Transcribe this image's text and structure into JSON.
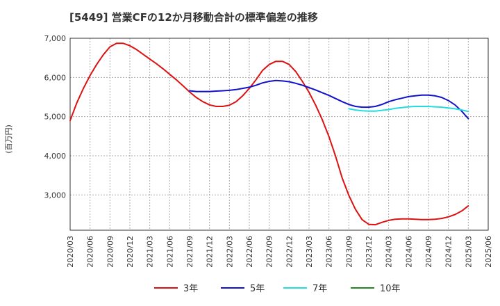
{
  "chart_data": {
    "type": "line",
    "title": "[5449]  営業CFの12か月移動合計の標準偏差の推移",
    "ylabel": "(百万円)",
    "xlabel": "",
    "ylim": [
      2100,
      7000
    ],
    "yticks": [
      3000,
      4000,
      5000,
      6000,
      7000
    ],
    "ytick_labels": [
      "3,000",
      "4,000",
      "5,000",
      "6,000",
      "7,000"
    ],
    "x_start": "2020/03",
    "x_end": "2025/06",
    "xtick_labels": [
      "2020/03",
      "2020/06",
      "2020/09",
      "2020/12",
      "2021/03",
      "2021/06",
      "2021/09",
      "2021/12",
      "2022/03",
      "2022/06",
      "2022/09",
      "2022/12",
      "2023/03",
      "2023/06",
      "2023/09",
      "2023/12",
      "2024/03",
      "2024/06",
      "2024/09",
      "2024/12",
      "2025/03",
      "2025/06"
    ],
    "grid": true,
    "legend_position": "bottom",
    "series": [
      {
        "name": "3年",
        "color": "#dd1111",
        "points": [
          [
            "2020/03",
            4900
          ],
          [
            "2020/04",
            5350
          ],
          [
            "2020/05",
            5720
          ],
          [
            "2020/06",
            6050
          ],
          [
            "2020/07",
            6330
          ],
          [
            "2020/08",
            6580
          ],
          [
            "2020/09",
            6780
          ],
          [
            "2020/10",
            6870
          ],
          [
            "2020/11",
            6870
          ],
          [
            "2020/12",
            6810
          ],
          [
            "2021/01",
            6710
          ],
          [
            "2021/02",
            6590
          ],
          [
            "2021/03",
            6470
          ],
          [
            "2021/04",
            6350
          ],
          [
            "2021/05",
            6220
          ],
          [
            "2021/06",
            6080
          ],
          [
            "2021/07",
            5940
          ],
          [
            "2021/08",
            5790
          ],
          [
            "2021/09",
            5630
          ],
          [
            "2021/10",
            5490
          ],
          [
            "2021/11",
            5380
          ],
          [
            "2021/12",
            5300
          ],
          [
            "2022/01",
            5260
          ],
          [
            "2022/02",
            5260
          ],
          [
            "2022/03",
            5290
          ],
          [
            "2022/04",
            5380
          ],
          [
            "2022/05",
            5530
          ],
          [
            "2022/06",
            5720
          ],
          [
            "2022/07",
            5940
          ],
          [
            "2022/08",
            6180
          ],
          [
            "2022/09",
            6330
          ],
          [
            "2022/10",
            6410
          ],
          [
            "2022/11",
            6410
          ],
          [
            "2022/12",
            6330
          ],
          [
            "2023/01",
            6150
          ],
          [
            "2023/02",
            5900
          ],
          [
            "2023/03",
            5620
          ],
          [
            "2023/04",
            5290
          ],
          [
            "2023/05",
            4920
          ],
          [
            "2023/06",
            4490
          ],
          [
            "2023/07",
            3990
          ],
          [
            "2023/08",
            3430
          ],
          [
            "2023/09",
            2990
          ],
          [
            "2023/10",
            2630
          ],
          [
            "2023/11",
            2370
          ],
          [
            "2023/12",
            2250
          ],
          [
            "2024/01",
            2240
          ],
          [
            "2024/02",
            2300
          ],
          [
            "2024/03",
            2350
          ],
          [
            "2024/04",
            2380
          ],
          [
            "2024/05",
            2390
          ],
          [
            "2024/06",
            2390
          ],
          [
            "2024/07",
            2380
          ],
          [
            "2024/08",
            2370
          ],
          [
            "2024/09",
            2370
          ],
          [
            "2024/10",
            2380
          ],
          [
            "2024/11",
            2400
          ],
          [
            "2024/12",
            2440
          ],
          [
            "2025/01",
            2500
          ],
          [
            "2025/02",
            2590
          ],
          [
            "2025/03",
            2720
          ]
        ]
      },
      {
        "name": "5年",
        "color": "#1111cc",
        "points": [
          [
            "2021/09",
            5660
          ],
          [
            "2021/10",
            5640
          ],
          [
            "2021/11",
            5640
          ],
          [
            "2021/12",
            5640
          ],
          [
            "2022/01",
            5650
          ],
          [
            "2022/02",
            5660
          ],
          [
            "2022/03",
            5670
          ],
          [
            "2022/04",
            5690
          ],
          [
            "2022/05",
            5720
          ],
          [
            "2022/06",
            5750
          ],
          [
            "2022/07",
            5800
          ],
          [
            "2022/08",
            5860
          ],
          [
            "2022/09",
            5900
          ],
          [
            "2022/10",
            5920
          ],
          [
            "2022/11",
            5910
          ],
          [
            "2022/12",
            5890
          ],
          [
            "2023/01",
            5850
          ],
          [
            "2023/02",
            5800
          ],
          [
            "2023/03",
            5740
          ],
          [
            "2023/04",
            5680
          ],
          [
            "2023/05",
            5610
          ],
          [
            "2023/06",
            5540
          ],
          [
            "2023/07",
            5460
          ],
          [
            "2023/08",
            5380
          ],
          [
            "2023/09",
            5310
          ],
          [
            "2023/10",
            5260
          ],
          [
            "2023/11",
            5240
          ],
          [
            "2023/12",
            5240
          ],
          [
            "2024/01",
            5260
          ],
          [
            "2024/02",
            5310
          ],
          [
            "2024/03",
            5380
          ],
          [
            "2024/04",
            5430
          ],
          [
            "2024/05",
            5470
          ],
          [
            "2024/06",
            5510
          ],
          [
            "2024/07",
            5530
          ],
          [
            "2024/08",
            5550
          ],
          [
            "2024/09",
            5550
          ],
          [
            "2024/10",
            5530
          ],
          [
            "2024/11",
            5490
          ],
          [
            "2024/12",
            5410
          ],
          [
            "2025/01",
            5300
          ],
          [
            "2025/02",
            5140
          ],
          [
            "2025/03",
            4950
          ]
        ]
      },
      {
        "name": "7年",
        "color": "#22dddd",
        "points": [
          [
            "2023/09",
            5200
          ],
          [
            "2023/10",
            5170
          ],
          [
            "2023/11",
            5150
          ],
          [
            "2023/12",
            5140
          ],
          [
            "2024/01",
            5140
          ],
          [
            "2024/02",
            5160
          ],
          [
            "2024/03",
            5180
          ],
          [
            "2024/04",
            5210
          ],
          [
            "2024/05",
            5230
          ],
          [
            "2024/06",
            5250
          ],
          [
            "2024/07",
            5260
          ],
          [
            "2024/08",
            5260
          ],
          [
            "2024/09",
            5260
          ],
          [
            "2024/10",
            5250
          ],
          [
            "2024/11",
            5240
          ],
          [
            "2024/12",
            5220
          ],
          [
            "2025/01",
            5200
          ],
          [
            "2025/02",
            5170
          ],
          [
            "2025/03",
            5130
          ]
        ]
      },
      {
        "name": "10年",
        "color": "#228822",
        "points": []
      }
    ]
  }
}
